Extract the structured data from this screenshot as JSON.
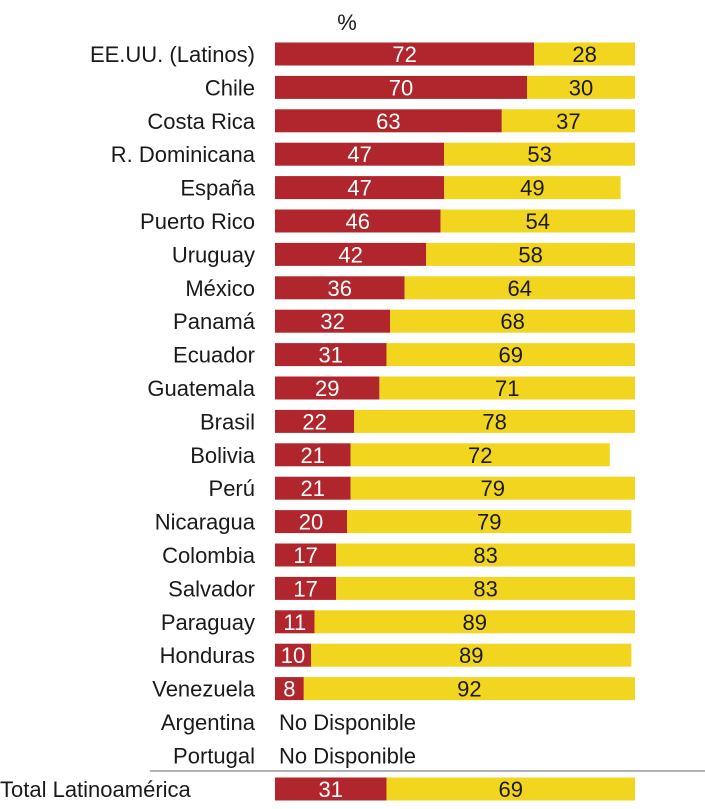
{
  "chart_data": {
    "type": "bar",
    "stacked": true,
    "unit_label": "%",
    "xlim": [
      0,
      100
    ],
    "categories": [
      "EE.UU. (Latinos)",
      "Chile",
      "Costa Rica",
      "R. Dominicana",
      "España",
      "Puerto Rico",
      "Uruguay",
      "México",
      "Panamá",
      "Ecuador",
      "Guatemala",
      "Brasil",
      "Bolivia",
      "Perú",
      "Nicaragua",
      "Colombia",
      "Salvador",
      "Paraguay",
      "Honduras",
      "Venezuela",
      "Argentina",
      "Portugal"
    ],
    "series": [
      {
        "color": "#b0262c",
        "values": [
          72,
          70,
          63,
          47,
          47,
          46,
          42,
          36,
          32,
          31,
          29,
          22,
          21,
          21,
          20,
          17,
          17,
          11,
          10,
          8,
          null,
          null
        ]
      },
      {
        "color": "#f2d51f",
        "values": [
          28,
          30,
          37,
          53,
          49,
          54,
          58,
          64,
          68,
          69,
          71,
          78,
          72,
          79,
          79,
          83,
          83,
          89,
          89,
          92,
          null,
          null
        ]
      }
    ],
    "unavailable_label": "No Disponible",
    "total": {
      "label": "Total Latinoamérica",
      "values": [
        31,
        69
      ]
    },
    "colors": {
      "value_text_dark_bar": "#ffffff",
      "value_text_light_bar": "#1a1a1a",
      "label_text": "#1a1a1a"
    }
  }
}
